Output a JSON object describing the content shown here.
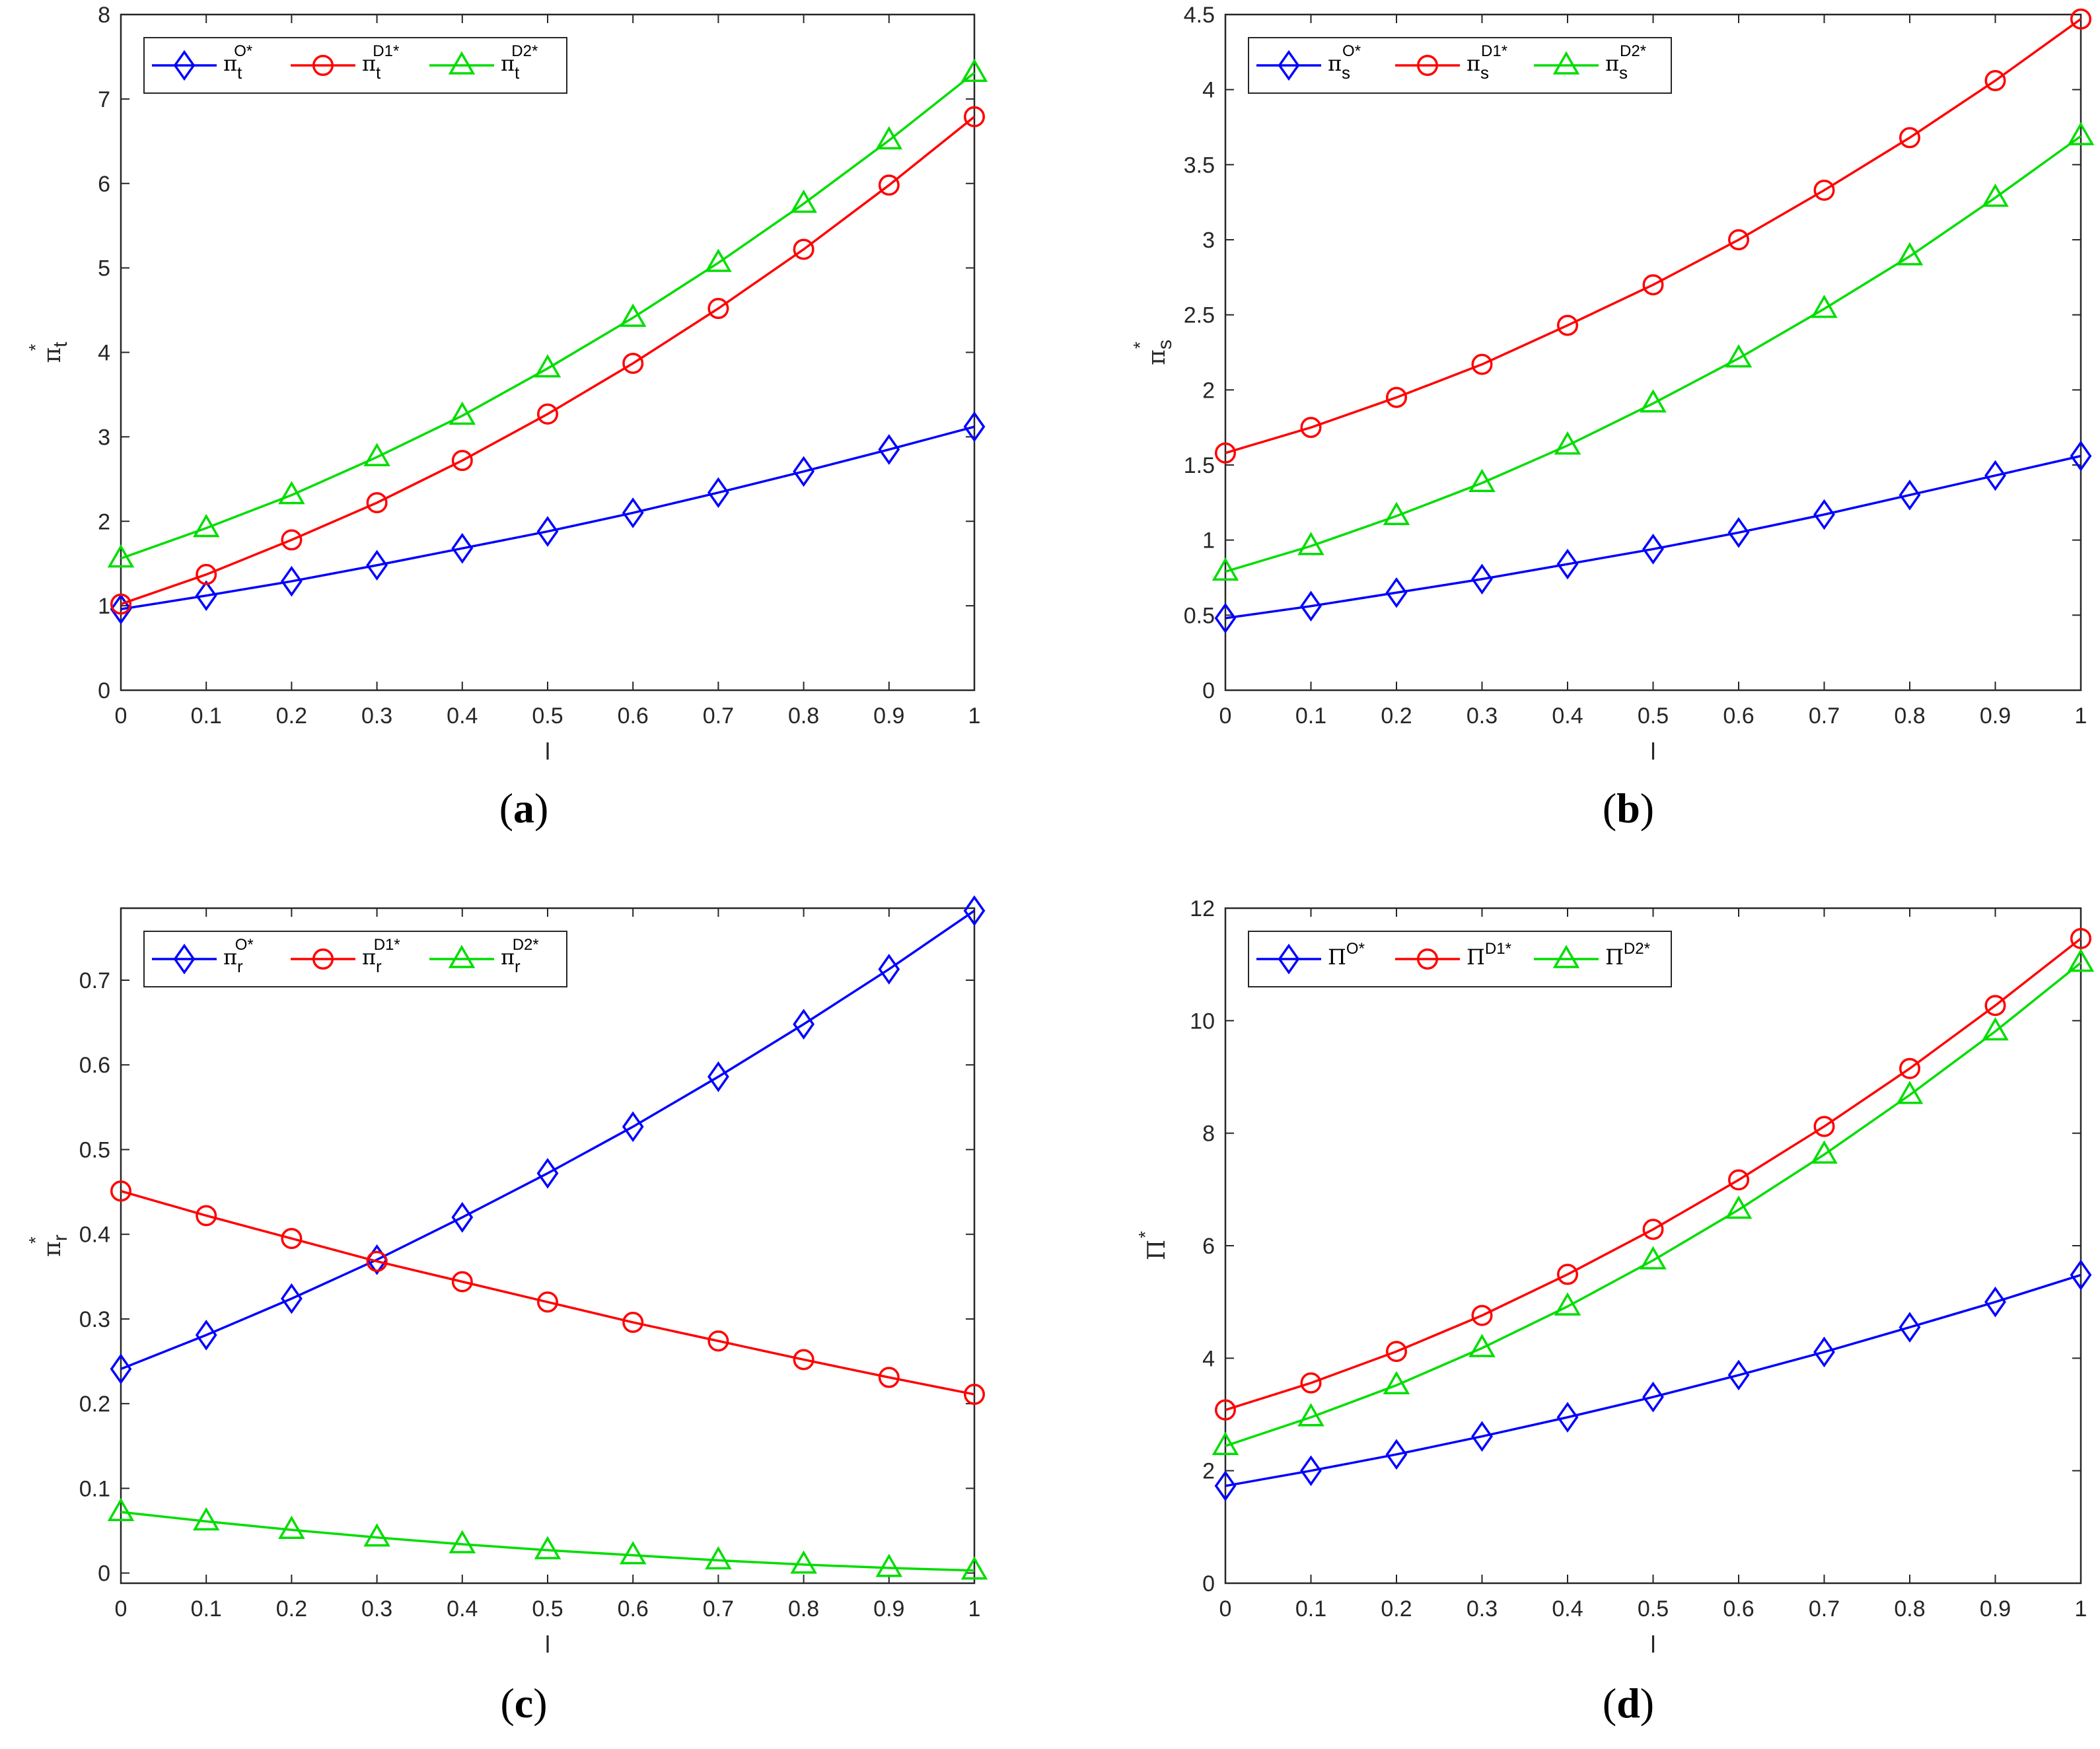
{
  "figure": {
    "caption_open": "(",
    "caption_close": ")"
  },
  "colors": {
    "O": "#0000ff",
    "D1": "#ff0000",
    "D2": "#00dd00",
    "axis": "#262626"
  },
  "chart_data": [
    {
      "panel": "a",
      "type": "line",
      "caption": "a",
      "xlabel": "l",
      "ylabel_base": "π",
      "ylabel_sub": "t",
      "ylabel_sup": "*",
      "x": [
        0,
        0.1,
        0.2,
        0.3,
        0.4,
        0.5,
        0.6,
        0.7,
        0.8,
        0.9,
        1
      ],
      "xticks": [
        "0",
        "0.1",
        "0.2",
        "0.3",
        "0.4",
        "0.5",
        "0.6",
        "0.7",
        "0.8",
        "0.9",
        "1"
      ],
      "xlim": [
        0,
        1
      ],
      "ylim": [
        0,
        8
      ],
      "yticks": [
        0,
        1,
        2,
        3,
        4,
        5,
        6,
        7,
        8
      ],
      "yticklabels": [
        "0",
        "1",
        "2",
        "3",
        "4",
        "5",
        "6",
        "7",
        "8"
      ],
      "legend_position": "top-left",
      "series": [
        {
          "key": "O",
          "marker": "diamond",
          "legend_base": "π",
          "legend_sub": "t",
          "legend_sup": "O*",
          "values": [
            0.96,
            1.12,
            1.29,
            1.48,
            1.68,
            1.88,
            2.1,
            2.34,
            2.59,
            2.85,
            3.12
          ]
        },
        {
          "key": "D1",
          "marker": "circle",
          "legend_base": "π",
          "legend_sub": "t",
          "legend_sup": "D1*",
          "values": [
            1.02,
            1.37,
            1.78,
            2.22,
            2.72,
            3.27,
            3.87,
            4.52,
            5.22,
            5.98,
            6.79
          ]
        },
        {
          "key": "D2",
          "marker": "triangle",
          "legend_base": "π",
          "legend_sub": "t",
          "legend_sup": "D2*",
          "values": [
            1.56,
            1.92,
            2.31,
            2.76,
            3.25,
            3.81,
            4.41,
            5.06,
            5.76,
            6.51,
            7.31
          ]
        }
      ]
    },
    {
      "panel": "b",
      "type": "line",
      "caption": "b",
      "xlabel": "l",
      "ylabel_base": "π",
      "ylabel_sub": "s",
      "ylabel_sup": "*",
      "x": [
        0,
        0.1,
        0.2,
        0.3,
        0.4,
        0.5,
        0.6,
        0.7,
        0.8,
        0.9,
        1
      ],
      "xticks": [
        "0",
        "0.1",
        "0.2",
        "0.3",
        "0.4",
        "0.5",
        "0.6",
        "0.7",
        "0.8",
        "0.9",
        "1"
      ],
      "xlim": [
        0,
        1
      ],
      "ylim": [
        0,
        4.5
      ],
      "yticks": [
        0,
        0.5,
        1,
        1.5,
        2,
        2.5,
        3,
        3.5,
        4,
        4.5
      ],
      "yticklabels": [
        "0",
        "0.5",
        "1",
        "1.5",
        "2",
        "2.5",
        "3",
        "3.5",
        "4",
        "4.5"
      ],
      "legend_position": "top-left",
      "series": [
        {
          "key": "O",
          "marker": "diamond",
          "legend_base": "π",
          "legend_sub": "s",
          "legend_sup": "O*",
          "values": [
            0.48,
            0.56,
            0.65,
            0.74,
            0.84,
            0.94,
            1.05,
            1.17,
            1.3,
            1.43,
            1.56
          ]
        },
        {
          "key": "D1",
          "marker": "circle",
          "legend_base": "π",
          "legend_sub": "s",
          "legend_sup": "D1*",
          "values": [
            1.58,
            1.75,
            1.95,
            2.17,
            2.43,
            2.7,
            3.0,
            3.33,
            3.68,
            4.06,
            4.47
          ]
        },
        {
          "key": "D2",
          "marker": "triangle",
          "legend_base": "π",
          "legend_sub": "s",
          "legend_sup": "D2*",
          "values": [
            0.79,
            0.96,
            1.16,
            1.38,
            1.63,
            1.91,
            2.21,
            2.54,
            2.89,
            3.28,
            3.69
          ]
        }
      ]
    },
    {
      "panel": "c",
      "type": "line",
      "caption": "c",
      "xlabel": "l",
      "ylabel_base": "π",
      "ylabel_sub": "r",
      "ylabel_sup": "*",
      "x": [
        0,
        0.1,
        0.2,
        0.3,
        0.4,
        0.5,
        0.6,
        0.7,
        0.8,
        0.9,
        1
      ],
      "xticks": [
        "0",
        "0.1",
        "0.2",
        "0.3",
        "0.4",
        "0.5",
        "0.6",
        "0.7",
        "0.8",
        "0.9",
        "1"
      ],
      "xlim": [
        0,
        1
      ],
      "ylim": [
        -0.012,
        0.785
      ],
      "yticks": [
        0,
        0.1,
        0.2,
        0.3,
        0.4,
        0.5,
        0.6,
        0.7
      ],
      "yticklabels": [
        "0",
        "0.1",
        "0.2",
        "0.3",
        "0.4",
        "0.5",
        "0.6",
        "0.7"
      ],
      "legend_position": "top-left",
      "series": [
        {
          "key": "O",
          "marker": "diamond",
          "legend_base": "π",
          "legend_sub": "r",
          "legend_sup": "O*",
          "values": [
            0.241,
            0.281,
            0.324,
            0.37,
            0.42,
            0.472,
            0.527,
            0.586,
            0.648,
            0.713,
            0.782
          ]
        },
        {
          "key": "D1",
          "marker": "circle",
          "legend_base": "π",
          "legend_sub": "r",
          "legend_sup": "D1*",
          "values": [
            0.451,
            0.422,
            0.395,
            0.368,
            0.344,
            0.32,
            0.296,
            0.274,
            0.252,
            0.231,
            0.211
          ]
        },
        {
          "key": "D2",
          "marker": "triangle",
          "legend_base": "π",
          "legend_sub": "r",
          "legend_sup": "D2*",
          "values": [
            0.072,
            0.061,
            0.051,
            0.042,
            0.034,
            0.027,
            0.021,
            0.015,
            0.01,
            0.006,
            0.003
          ]
        }
      ]
    },
    {
      "panel": "d",
      "type": "line",
      "caption": "d",
      "xlabel": "l",
      "ylabel_base": "Π",
      "ylabel_sub": "",
      "ylabel_sup": "*",
      "x": [
        0,
        0.1,
        0.2,
        0.3,
        0.4,
        0.5,
        0.6,
        0.7,
        0.8,
        0.9,
        1
      ],
      "xticks": [
        "0",
        "0.1",
        "0.2",
        "0.3",
        "0.4",
        "0.5",
        "0.6",
        "0.7",
        "0.8",
        "0.9",
        "1"
      ],
      "xlim": [
        0,
        1
      ],
      "ylim": [
        0,
        12
      ],
      "yticks": [
        0,
        2,
        4,
        6,
        8,
        10,
        12
      ],
      "yticklabels": [
        "0",
        "2",
        "4",
        "6",
        "8",
        "10",
        "12"
      ],
      "legend_position": "top-left",
      "series": [
        {
          "key": "O",
          "marker": "diamond",
          "legend_base": "Π",
          "legend_sub": "",
          "legend_sup": "O*",
          "values": [
            1.73,
            2.0,
            2.29,
            2.61,
            2.95,
            3.31,
            3.7,
            4.11,
            4.55,
            5.0,
            5.48
          ]
        },
        {
          "key": "D1",
          "marker": "circle",
          "legend_base": "Π",
          "legend_sub": "",
          "legend_sup": "D1*",
          "values": [
            3.08,
            3.56,
            4.12,
            4.76,
            5.49,
            6.29,
            7.17,
            8.12,
            9.15,
            10.27,
            11.46
          ]
        },
        {
          "key": "D2",
          "marker": "triangle",
          "legend_base": "Π",
          "legend_sub": "",
          "legend_sup": "D2*",
          "values": [
            2.44,
            2.95,
            3.52,
            4.18,
            4.92,
            5.74,
            6.64,
            7.62,
            8.68,
            9.81,
            11.03
          ]
        }
      ]
    }
  ]
}
